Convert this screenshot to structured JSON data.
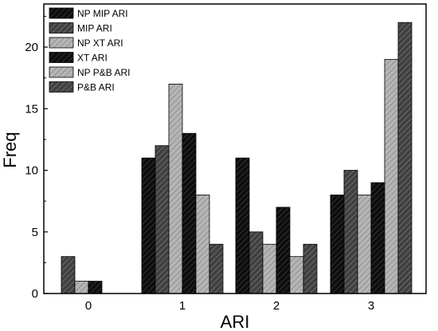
{
  "chart_data": {
    "type": "bar",
    "xlabel": "ARI",
    "ylabel": "Freq",
    "categories": [
      "0",
      "1",
      "2",
      "3"
    ],
    "ylim": [
      0,
      23.5
    ],
    "yticks": [
      "0",
      "5",
      "10",
      "15",
      "20"
    ],
    "grid": false,
    "legend": "top-left",
    "series": [
      {
        "name": "NP MIP ARI",
        "values": [
          0,
          11,
          11,
          8
        ],
        "color": "#0d0d0d",
        "hatch": "dense-dark"
      },
      {
        "name": "MIP ARI",
        "values": [
          3,
          12,
          5,
          10
        ],
        "color": "#444444",
        "hatch": "dark"
      },
      {
        "name": "NP XT ARI",
        "values": [
          1,
          17,
          4,
          8
        ],
        "color": "#a6a6a6",
        "hatch": "light"
      },
      {
        "name": "XT ARI",
        "values": [
          1,
          13,
          7,
          9
        ],
        "color": "#141414",
        "hatch": "dense-dark"
      },
      {
        "name": "NP P&B ARI",
        "values": [
          0,
          8,
          3,
          19
        ],
        "color": "#bdbdbd",
        "hatch": "light"
      },
      {
        "name": "P&B ARI",
        "values": [
          0,
          4,
          4,
          22
        ],
        "color": "#5a5a5a",
        "hatch": "dark"
      }
    ]
  }
}
